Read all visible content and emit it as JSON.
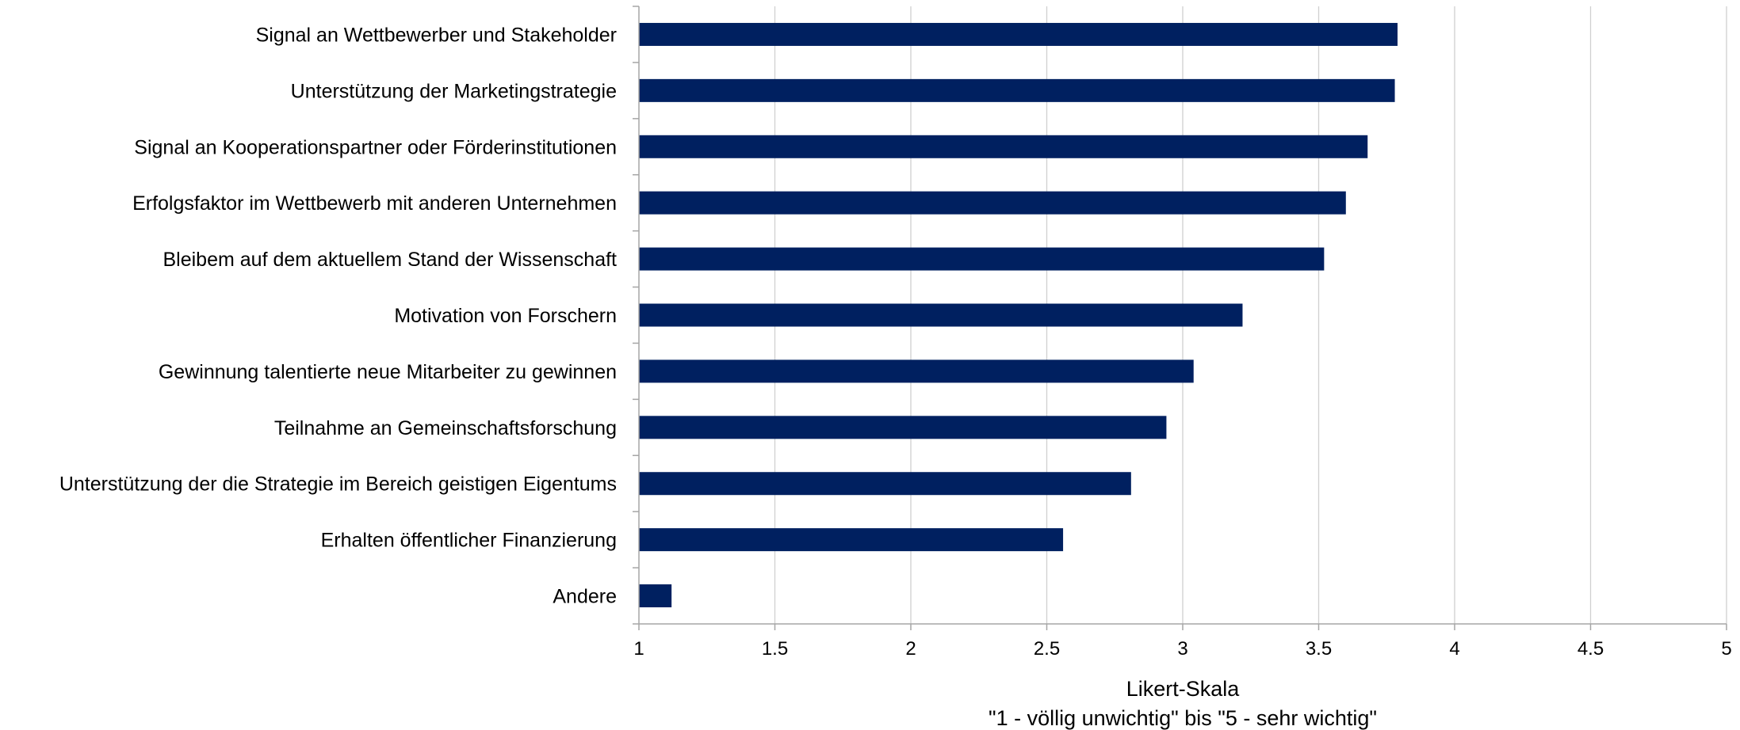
{
  "chart_data": {
    "type": "bar",
    "orientation": "horizontal",
    "categories": [
      "Signal an Wettbewerber und Stakeholder",
      "Unterstützung der Marketingstrategie",
      "Signal an Kooperationspartner oder Förderinstitutionen",
      "Erfolgsfaktor im Wettbewerb mit anderen Unternehmen",
      "Bleibem auf dem aktuellem  Stand der Wissenschaft",
      "Motivation von Forschern",
      "Gewinnung talentierte neue Mitarbeiter zu gewinnen",
      "Teilnahme an Gemeinschaftsforschung",
      "Unterstützung der die Strategie im Bereich geistigen Eigentums",
      "Erhalten öffentlicher Finanzierung",
      "Andere"
    ],
    "values": [
      3.79,
      3.78,
      3.68,
      3.6,
      3.52,
      3.22,
      3.04,
      2.94,
      2.81,
      2.56,
      1.12
    ],
    "xlabel": "Likert-Skala",
    "xlabel_line2": "\"1 - völlig unwichtig\" bis \"5 - sehr wichtig\"",
    "xlim": [
      1,
      5
    ],
    "xticks": [
      1,
      1.5,
      2,
      2.5,
      3,
      3.5,
      4,
      4.5,
      5
    ],
    "xtick_labels": [
      "1",
      "1.5",
      "2",
      "2.5",
      "3",
      "3.5",
      "4",
      "4.5",
      "5"
    ],
    "grid": "vertical",
    "legend": "none",
    "bar_color": "#002060",
    "grid_color": "#d0d0d0",
    "axis_color": "#a6a6a6"
  }
}
